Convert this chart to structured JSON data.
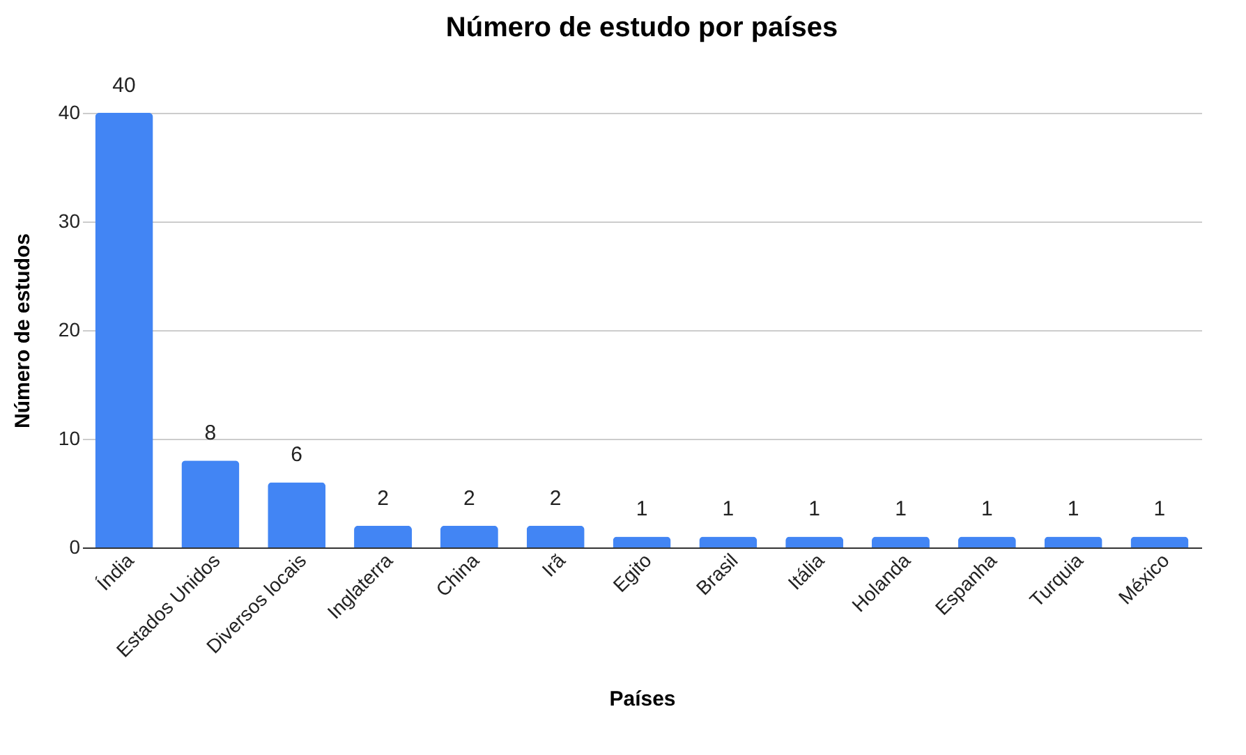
{
  "chart_data": {
    "type": "bar",
    "title": "Número de estudo por países",
    "xlabel": "Países",
    "ylabel": "Número de estudos",
    "categories": [
      "Índia",
      "Estados Unidos",
      "Diversos locais",
      "Inglaterra",
      "China",
      "Irã",
      "Egito",
      "Brasil",
      "Itália",
      "Holanda",
      "Espanha",
      "Turquia",
      "México"
    ],
    "values": [
      40,
      8,
      6,
      2,
      2,
      2,
      1,
      1,
      1,
      1,
      1,
      1,
      1
    ],
    "color": "#4285f4",
    "ylim": [
      0,
      40
    ],
    "yticks": [
      0,
      10,
      20,
      30,
      40
    ],
    "grid": "y",
    "data_labels": true
  }
}
